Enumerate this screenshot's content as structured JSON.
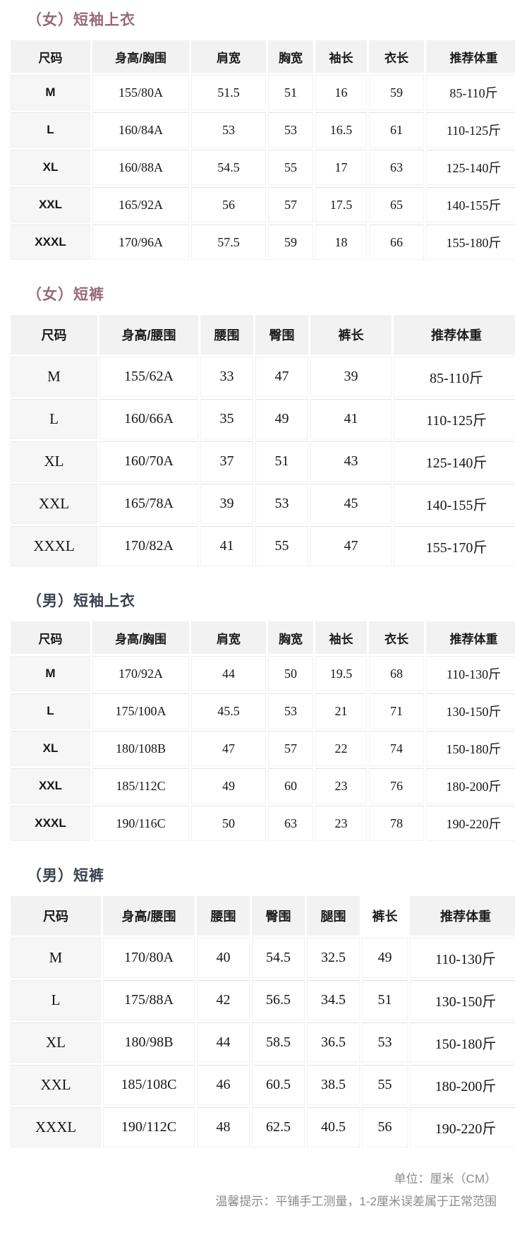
{
  "colors": {
    "female_title": "#9a6a76",
    "male_title": "#3a4250",
    "header_cell_bg": "#f2f2f2",
    "first_column_bg": "#f6f6f6",
    "note_text": "#8b8b8b"
  },
  "tables": [
    {
      "id": "women-top",
      "title": "（女）短袖上衣",
      "gender": "female",
      "headers": [
        "尺码",
        "身高/胸围",
        "肩宽",
        "胸宽",
        "袖长",
        "衣长",
        "推荐体重"
      ],
      "rows": [
        [
          "M",
          "155/80A",
          "51.5",
          "51",
          "16",
          "59",
          "85-110斤"
        ],
        [
          "L",
          "160/84A",
          "53",
          "53",
          "16.5",
          "61",
          "110-125斤"
        ],
        [
          "XL",
          "160/88A",
          "54.5",
          "55",
          "17",
          "63",
          "125-140斤"
        ],
        [
          "XXL",
          "165/92A",
          "56",
          "57",
          "17.5",
          "65",
          "140-155斤"
        ],
        [
          "XXXL",
          "170/96A",
          "57.5",
          "59",
          "18",
          "66",
          "155-180斤"
        ]
      ]
    },
    {
      "id": "women-shorts",
      "title": "（女）短裤",
      "gender": "female",
      "headers": [
        "尺码",
        "身高/腰围",
        "腰围",
        "臀围",
        "裤长",
        "推荐体重"
      ],
      "rows": [
        [
          "M",
          "155/62A",
          "33",
          "47",
          "39",
          "85-110斤"
        ],
        [
          "L",
          "160/66A",
          "35",
          "49",
          "41",
          "110-125斤"
        ],
        [
          "XL",
          "160/70A",
          "37",
          "51",
          "43",
          "125-140斤"
        ],
        [
          "XXL",
          "165/78A",
          "39",
          "53",
          "45",
          "140-155斤"
        ],
        [
          "XXXL",
          "170/82A",
          "41",
          "55",
          "47",
          "155-170斤"
        ]
      ]
    },
    {
      "id": "men-top",
      "title": "（男）短袖上衣",
      "gender": "male",
      "headers": [
        "尺码",
        "身高/胸围",
        "肩宽",
        "胸宽",
        "袖长",
        "衣长",
        "推荐体重"
      ],
      "rows": [
        [
          "M",
          "170/92A",
          "44",
          "50",
          "19.5",
          "68",
          "110-130斤"
        ],
        [
          "L",
          "175/100A",
          "45.5",
          "53",
          "21",
          "71",
          "130-150斤"
        ],
        [
          "XL",
          "180/108B",
          "47",
          "57",
          "22",
          "74",
          "150-180斤"
        ],
        [
          "XXL",
          "185/112C",
          "49",
          "60",
          "23",
          "76",
          "180-200斤"
        ],
        [
          "XXXL",
          "190/116C",
          "50",
          "63",
          "23",
          "78",
          "190-220斤"
        ]
      ]
    },
    {
      "id": "men-shorts",
      "title": "（男）短裤",
      "gender": "male",
      "headers": [
        "尺码",
        "身高/腰围",
        "腰围",
        "臀围",
        "腿围",
        "裤长",
        "推荐体重"
      ],
      "rows": [
        [
          "M",
          "170/80A",
          "40",
          "54.5",
          "32.5",
          "49",
          "110-130斤"
        ],
        [
          "L",
          "175/88A",
          "42",
          "56.5",
          "34.5",
          "51",
          "130-150斤"
        ],
        [
          "XL",
          "180/98B",
          "44",
          "58.5",
          "36.5",
          "53",
          "150-180斤"
        ],
        [
          "XXL",
          "185/108C",
          "46",
          "60.5",
          "38.5",
          "55",
          "180-200斤"
        ],
        [
          "XXXL",
          "190/112C",
          "48",
          "62.5",
          "40.5",
          "56",
          "190-220斤"
        ]
      ]
    }
  ],
  "notes": {
    "unit": "单位：厘米（CM）",
    "tip": "温馨提示：平铺手工测量，1-2厘米误差属于正常范围"
  }
}
